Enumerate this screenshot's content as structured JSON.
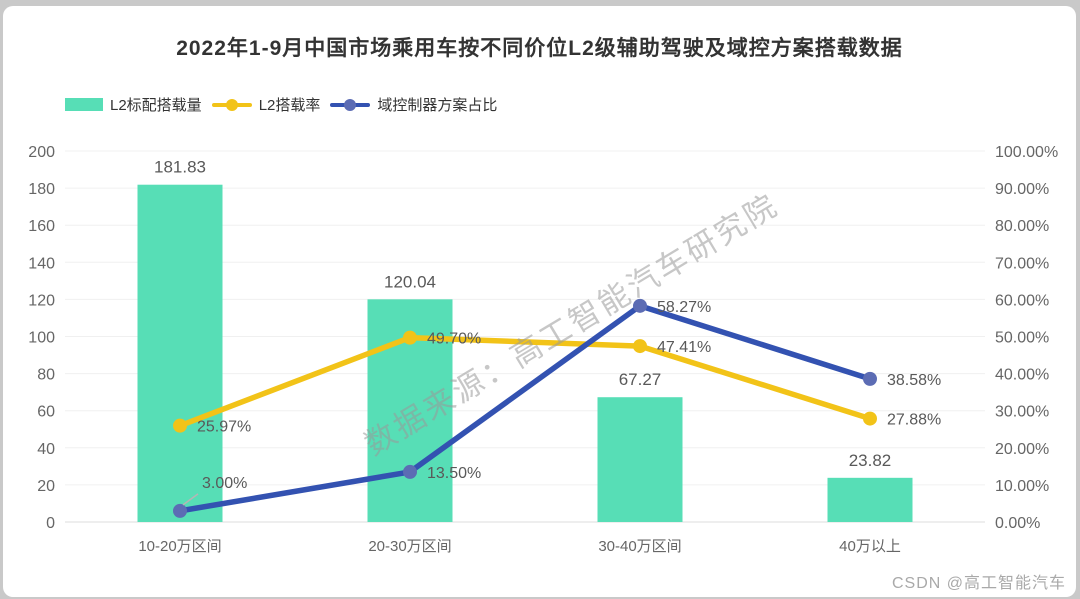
{
  "title": "2022年1-9月中国市场乘用车按不同价位L2级辅助驾驶及域控方案搭载数据",
  "watermark": "数据来源：高工智能汽车研究院",
  "footer": "CSDN @高工智能汽车",
  "colors": {
    "bar": "#57DEB6",
    "line_rate": "#F2C318",
    "line_domain": "#3352B1",
    "domain_dot": "#5C6CB4",
    "leader": "#b5b5b5",
    "grid": "#f0f0f0",
    "axis_line": "#dedede",
    "tick_text": "#666666",
    "label_text": "#595959"
  },
  "chart_data": {
    "type": "bar+line",
    "categories": [
      "10-20万区间",
      "20-30万区间",
      "30-40万区间",
      "40万以上"
    ],
    "series": [
      {
        "name": "L2标配搭载量",
        "type": "bar",
        "axis": "left",
        "values": [
          181.83,
          120.04,
          67.27,
          23.82
        ],
        "labels": [
          "181.83",
          "120.04",
          "67.27",
          "23.82"
        ]
      },
      {
        "name": "L2搭载率",
        "type": "line",
        "axis": "right",
        "values": [
          25.97,
          49.7,
          47.41,
          27.88
        ],
        "labels": [
          "25.97%",
          "49.70%",
          "47.41%",
          "27.88%"
        ]
      },
      {
        "name": "域控制器方案占比",
        "type": "line",
        "axis": "right",
        "values": [
          3.0,
          13.5,
          58.27,
          38.58
        ],
        "labels": [
          "3.00%",
          "13.50%",
          "58.27%",
          "38.58%"
        ]
      }
    ],
    "left_axis": {
      "min": 0,
      "max": 200,
      "step": 20,
      "ticks": [
        "0",
        "20",
        "40",
        "60",
        "80",
        "100",
        "120",
        "140",
        "160",
        "180",
        "200"
      ]
    },
    "right_axis": {
      "min": 0,
      "max": 100,
      "step": 10,
      "ticks": [
        "0.00%",
        "10.00%",
        "20.00%",
        "30.00%",
        "40.00%",
        "50.00%",
        "60.00%",
        "70.00%",
        "80.00%",
        "90.00%",
        "100.00%"
      ]
    },
    "grid": true,
    "legend_position": "top-left",
    "label_adjust": [
      {
        "series": 2,
        "index": 0,
        "dx": 22,
        "dy": -23,
        "leader": true
      }
    ]
  }
}
